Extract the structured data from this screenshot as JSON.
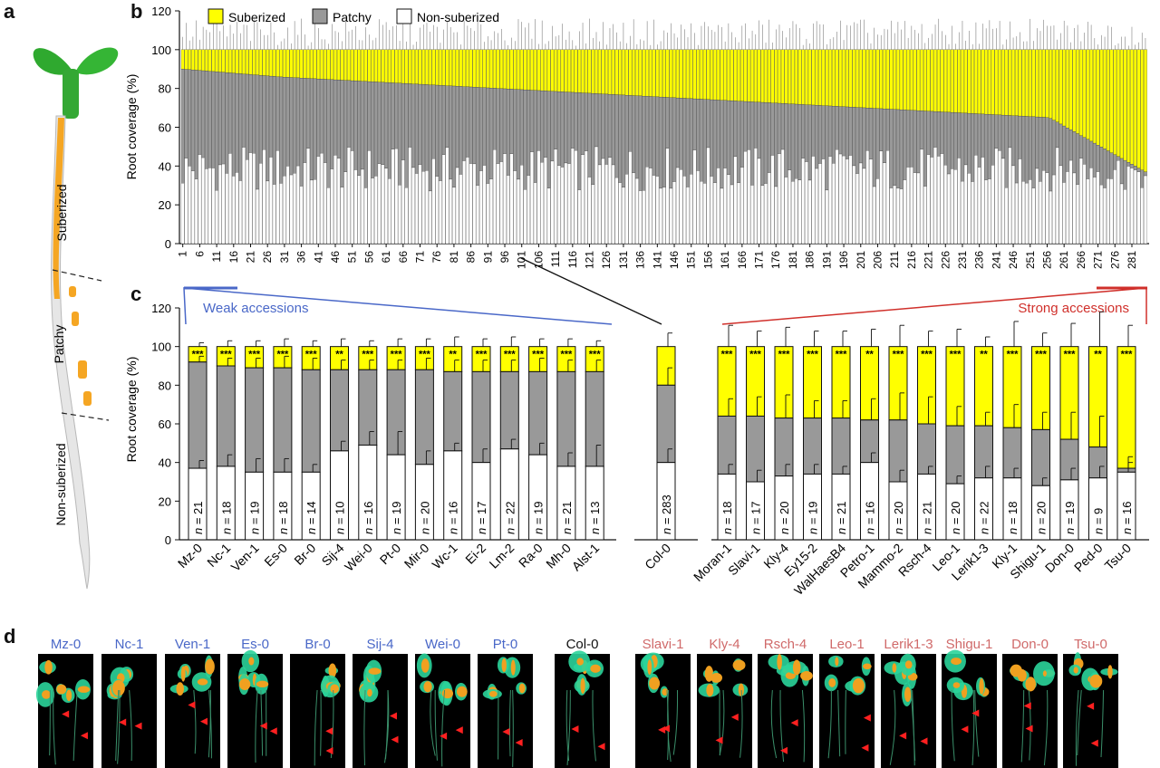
{
  "panel_labels": {
    "a": "a",
    "b": "b",
    "c": "c",
    "d": "d"
  },
  "seedling": {
    "zones": [
      "Suberized",
      "Patchy",
      "Non-suberized"
    ],
    "colors": {
      "leaf": "#2fa92f",
      "suberized": "#f5a623",
      "root": "#d8d8d8"
    }
  },
  "legend": [
    {
      "label": "Suberized",
      "color": "#ffff00"
    },
    {
      "label": "Patchy",
      "color": "#999999"
    },
    {
      "label": "Non-suberized",
      "color": "#ffffff"
    }
  ],
  "colors": {
    "suberized": "#ffff00",
    "patchy": "#999999",
    "nonsuberized": "#ffffff",
    "weak": "#4a68c8",
    "strong": "#d0302b"
  },
  "chart_data": [
    {
      "type": "bar",
      "stacked": true,
      "ylabel": "Root coverage (%)",
      "ylim": [
        0,
        120
      ],
      "yticks": [
        0,
        20,
        40,
        60,
        80,
        100,
        120
      ],
      "n_accessions": 285,
      "xtick_labels": [
        "1",
        "6",
        "11",
        "16",
        "21",
        "26",
        "31",
        "36",
        "41",
        "46",
        "51",
        "56",
        "61",
        "66",
        "71",
        "76",
        "81",
        "86",
        "91",
        "96",
        "101",
        "106",
        "111",
        "116",
        "121",
        "126",
        "131",
        "136",
        "141",
        "146",
        "151",
        "156",
        "161",
        "166",
        "171",
        "176",
        "181",
        "186",
        "191",
        "196",
        "201",
        "206",
        "211",
        "216",
        "221",
        "226",
        "231",
        "236",
        "241",
        "246",
        "251",
        "256",
        "261",
        "266",
        "271",
        "276",
        "281"
      ],
      "series": [
        {
          "name": "Non-suberized",
          "profile": "fluctuating",
          "range": [
            27,
            50
          ]
        },
        {
          "name": "Patchy",
          "profile": "cumulative_top_descending",
          "start": 90,
          "end": 37
        },
        {
          "name": "Suberized",
          "profile": "fills_to_100"
        }
      ]
    },
    {
      "type": "bar",
      "stacked": true,
      "ylabel": "Root coverage (%)",
      "ylim": [
        0,
        120
      ],
      "yticks": [
        0,
        20,
        40,
        60,
        80,
        100,
        120
      ],
      "groups": [
        {
          "label": "Weak accessions",
          "color": "#4a68c8"
        },
        {
          "label": "Strong accessions",
          "color": "#d0302b"
        }
      ],
      "categories": [
        "Mz-0",
        "Nc-1",
        "Ven-1",
        "Es-0",
        "Br-0",
        "Sij-4",
        "Wei-0",
        "Pt-0",
        "Mir-0",
        "Wc-1",
        "Ei-2",
        "Lm-2",
        "Ra-0",
        "Mh-0",
        "Alst-1",
        "Col-0",
        "Moran-1",
        "Slavi-1",
        "Kly-4",
        "Ey15-2",
        "WalHaesB4",
        "Petro-1",
        "Mammo-2",
        "Rsch-4",
        "Leo-1",
        "Lerik1-3",
        "Kly-1",
        "Shigu-1",
        "Don-0",
        "Ped-0",
        "Tsu-0"
      ],
      "group_index": [
        0,
        0,
        0,
        0,
        0,
        0,
        0,
        0,
        0,
        0,
        0,
        0,
        0,
        0,
        0,
        -1,
        1,
        1,
        1,
        1,
        1,
        1,
        1,
        1,
        1,
        1,
        1,
        1,
        1,
        1,
        1
      ],
      "series": [
        {
          "name": "Non-suberized",
          "values": [
            37,
            38,
            35,
            35,
            35,
            46,
            49,
            44,
            39,
            46,
            40,
            47,
            44,
            38,
            38,
            40,
            34,
            30,
            33,
            34,
            34,
            40,
            30,
            34,
            29,
            32,
            32,
            28,
            31,
            32,
            35
          ]
        },
        {
          "name": "Patchy",
          "values": [
            55,
            52,
            54,
            54,
            53,
            42,
            39,
            44,
            49,
            41,
            47,
            40,
            43,
            49,
            49,
            40,
            30,
            34,
            30,
            29,
            29,
            22,
            32,
            26,
            30,
            27,
            26,
            29,
            21,
            16,
            2
          ]
        },
        {
          "name": "Suberized",
          "values": [
            8,
            10,
            11,
            11,
            12,
            12,
            12,
            12,
            12,
            13,
            13,
            13,
            13,
            13,
            13,
            20,
            36,
            36,
            37,
            37,
            37,
            38,
            38,
            40,
            41,
            41,
            42,
            43,
            48,
            52,
            63
          ]
        }
      ],
      "error_top": [
        102,
        103,
        103,
        104,
        103,
        104,
        103,
        104,
        104,
        105,
        104,
        105,
        104,
        104,
        103,
        107,
        111,
        108,
        110,
        108,
        108,
        109,
        111,
        108,
        109,
        105,
        113,
        107,
        112,
        118,
        111
      ],
      "error_patchy": [
        95,
        94,
        94,
        95,
        94,
        93,
        93,
        93,
        94,
        93,
        93,
        93,
        94,
        93,
        93,
        89,
        73,
        74,
        75,
        72,
        72,
        73,
        76,
        74,
        69,
        66,
        70,
        66,
        66,
        64,
        43
      ],
      "error_non": [
        41,
        44,
        42,
        42,
        39,
        51,
        56,
        56,
        46,
        50,
        47,
        52,
        50,
        45,
        49,
        47,
        39,
        36,
        39,
        39,
        38,
        45,
        36,
        38,
        33,
        38,
        37,
        32,
        37,
        38,
        40
      ],
      "n_values": [
        "21",
        "18",
        "19",
        "18",
        "14",
        "10",
        "16",
        "19",
        "20",
        "16",
        "17",
        "22",
        "19",
        "21",
        "13",
        "283",
        "18",
        "17",
        "20",
        "19",
        "21",
        "16",
        "20",
        "21",
        "20",
        "22",
        "18",
        "20",
        "19",
        "9",
        "16"
      ],
      "significance": [
        "***",
        "***",
        "***",
        "***",
        "***",
        "**",
        "***",
        "***",
        "***",
        "**",
        "***",
        "***",
        "***",
        "***",
        "***",
        "",
        "***",
        "***",
        "***",
        "***",
        "***",
        "**",
        "***",
        "***",
        "***",
        "**",
        "***",
        "***",
        "***",
        "**",
        "***"
      ],
      "n_prefix": "n",
      "n_sep": " = "
    }
  ],
  "thumbnails": [
    {
      "label": "Mz-0",
      "color": "#4a68c8"
    },
    {
      "label": "Nc-1",
      "color": "#4a68c8"
    },
    {
      "label": "Ven-1",
      "color": "#4a68c8"
    },
    {
      "label": "Es-0",
      "color": "#4a68c8"
    },
    {
      "label": "Br-0",
      "color": "#4a68c8"
    },
    {
      "label": "Sij-4",
      "color": "#4a68c8"
    },
    {
      "label": "Wei-0",
      "color": "#4a68c8"
    },
    {
      "label": "Pt-0",
      "color": "#4a68c8"
    },
    {
      "label": "Col-0",
      "color": "#111111"
    },
    {
      "label": "Slavi-1",
      "color": "#d06a6a"
    },
    {
      "label": "Kly-4",
      "color": "#d06a6a"
    },
    {
      "label": "Rsch-4",
      "color": "#d06a6a"
    },
    {
      "label": "Leo-1",
      "color": "#d06a6a"
    },
    {
      "label": "Lerik1-3",
      "color": "#d06a6a"
    },
    {
      "label": "Shigu-1",
      "color": "#d06a6a"
    },
    {
      "label": "Don-0",
      "color": "#d06a6a"
    },
    {
      "label": "Tsu-0",
      "color": "#d06a6a"
    }
  ]
}
